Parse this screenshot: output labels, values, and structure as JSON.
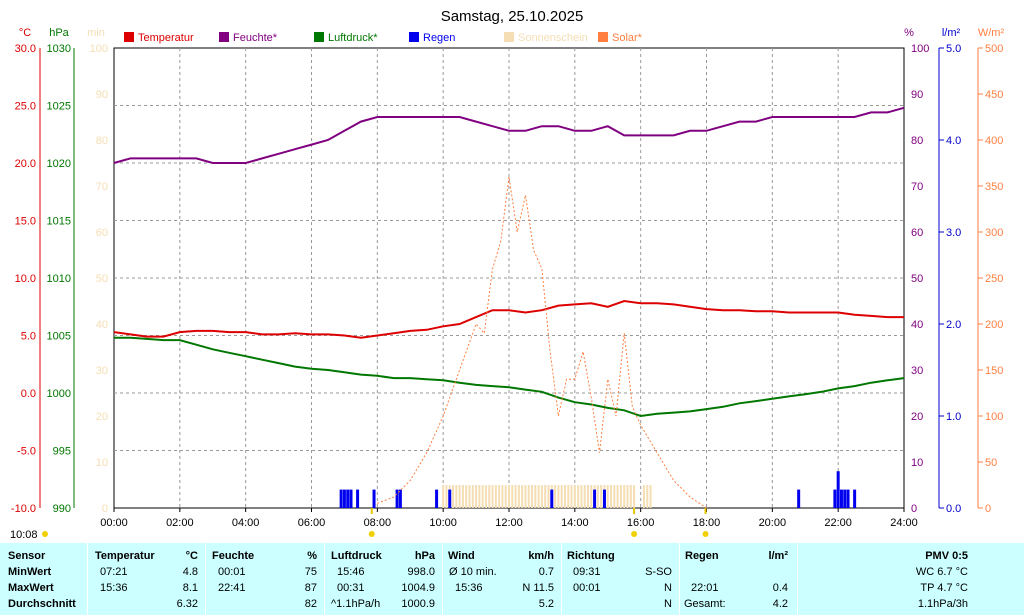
{
  "chart_data": {
    "type": "line",
    "title": "Samstag, 25.10.2025",
    "legend": [
      {
        "name": "Temperatur",
        "color": "#dd0000"
      },
      {
        "name": "Feuchte*",
        "color": "#800080"
      },
      {
        "name": "Luftdruck*",
        "color": "#007700"
      },
      {
        "name": "Regen",
        "color": "#0000ee"
      },
      {
        "name": "Sonnenschein",
        "color": "#f5deb3"
      },
      {
        "name": "Solar*",
        "color": "#ff7f40"
      }
    ],
    "axes": {
      "temp": {
        "unit": "°C",
        "range": [
          -10,
          30
        ],
        "ticks": [
          "-10.0",
          "-5.0",
          "0.0",
          "5.0",
          "10.0",
          "15.0",
          "20.0",
          "25.0",
          "30.0"
        ],
        "color": "#dd0000"
      },
      "pressure": {
        "unit": "hPa",
        "range": [
          990,
          1030
        ],
        "ticks": [
          "990",
          "995",
          "1000",
          "1005",
          "1010",
          "1015",
          "1020",
          "1025",
          "1030"
        ],
        "color": "#007700"
      },
      "sun": {
        "unit": "min",
        "range": [
          0,
          100
        ],
        "ticks": [
          "0",
          "10",
          "20",
          "30",
          "40",
          "50",
          "60",
          "70",
          "80",
          "90",
          "100"
        ],
        "color": "#f5deb3"
      },
      "humidity": {
        "unit": "%",
        "range": [
          0,
          100
        ],
        "ticks": [
          "0",
          "10",
          "20",
          "30",
          "40",
          "50",
          "60",
          "70",
          "80",
          "90",
          "100"
        ],
        "color": "#800080"
      },
      "rain": {
        "unit": "l/m²",
        "range": [
          0,
          5
        ],
        "ticks": [
          "0.0",
          "1.0",
          "2.0",
          "3.0",
          "4.0",
          "5.0"
        ],
        "color": "#0000cc"
      },
      "solar": {
        "unit": "W/m²",
        "range": [
          0,
          500
        ],
        "ticks": [
          "0",
          "50",
          "100",
          "150",
          "200",
          "250",
          "300",
          "350",
          "400",
          "450",
          "500"
        ],
        "color": "#ff7f40"
      },
      "x": {
        "ticks": [
          "00:00",
          "02:00",
          "04:00",
          "06:00",
          "08:00",
          "10:00",
          "12:00",
          "14:00",
          "16:00",
          "18:00",
          "20:00",
          "22:00",
          "24:00"
        ],
        "range_hours": [
          0,
          24
        ]
      }
    },
    "sunrise_label": "10:08",
    "sun_markers_hours": [
      7.83,
      15.8,
      17.97
    ],
    "series": [
      {
        "name": "Temperatur",
        "axis": "temp",
        "color": "#dd0000",
        "x": [
          0,
          0.5,
          1,
          1.5,
          2,
          2.5,
          3,
          3.5,
          4,
          4.5,
          5,
          5.5,
          6,
          6.5,
          7,
          7.5,
          8,
          8.5,
          9,
          9.5,
          10,
          10.5,
          11,
          11.5,
          12,
          12.5,
          13,
          13.5,
          14,
          14.5,
          15,
          15.5,
          16,
          16.5,
          17,
          17.5,
          18,
          18.5,
          19,
          19.5,
          20,
          20.5,
          21,
          21.5,
          22,
          22.5,
          23,
          23.5,
          24
        ],
        "y": [
          5.3,
          5.1,
          4.9,
          4.9,
          5.3,
          5.4,
          5.4,
          5.3,
          5.3,
          5.1,
          5.1,
          5.2,
          5.1,
          5.1,
          5.0,
          4.8,
          5.0,
          5.2,
          5.4,
          5.5,
          5.8,
          6.0,
          6.6,
          7.2,
          7.2,
          7.0,
          7.2,
          7.6,
          7.7,
          7.8,
          7.5,
          8.0,
          7.8,
          7.8,
          7.7,
          7.5,
          7.3,
          7.2,
          7.2,
          7.1,
          7.1,
          7.0,
          7.0,
          7.0,
          7.0,
          6.8,
          6.7,
          6.6,
          6.6
        ]
      },
      {
        "name": "Feuchte*",
        "axis": "humidity",
        "color": "#800080",
        "x": [
          0,
          0.5,
          1,
          1.5,
          2,
          2.5,
          3,
          3.5,
          4,
          4.5,
          5,
          5.5,
          6,
          6.5,
          7,
          7.5,
          8,
          8.5,
          9,
          9.5,
          10,
          10.5,
          11,
          11.5,
          12,
          12.5,
          13,
          13.5,
          14,
          14.5,
          15,
          15.5,
          16,
          16.5,
          17,
          17.5,
          18,
          18.5,
          19,
          19.5,
          20,
          20.5,
          21,
          21.5,
          22,
          22.5,
          23,
          23.5,
          24
        ],
        "y": [
          75,
          76,
          76,
          76,
          76,
          76,
          75,
          75,
          75,
          76,
          77,
          78,
          79,
          80,
          82,
          84,
          85,
          85,
          85,
          85,
          85,
          85,
          84,
          83,
          82,
          82,
          83,
          83,
          82,
          82,
          83,
          81,
          81,
          81,
          81,
          82,
          82,
          83,
          84,
          84,
          85,
          85,
          85,
          85,
          85,
          85,
          86,
          86,
          87
        ]
      },
      {
        "name": "Luftdruck*",
        "axis": "pressure",
        "color": "#007700",
        "x": [
          0,
          0.5,
          1,
          1.5,
          2,
          2.5,
          3,
          3.5,
          4,
          4.5,
          5,
          5.5,
          6,
          6.5,
          7,
          7.5,
          8,
          8.5,
          9,
          9.5,
          10,
          10.5,
          11,
          11.5,
          12,
          12.5,
          13,
          13.5,
          14,
          14.5,
          15,
          15.5,
          16,
          16.5,
          17,
          17.5,
          18,
          18.5,
          19,
          19.5,
          20,
          20.5,
          21,
          21.5,
          22,
          22.5,
          23,
          23.5,
          24
        ],
        "y": [
          1004.8,
          1004.8,
          1004.7,
          1004.6,
          1004.6,
          1004.2,
          1003.8,
          1003.5,
          1003.2,
          1002.9,
          1002.6,
          1002.3,
          1002.1,
          1002.0,
          1001.8,
          1001.6,
          1001.5,
          1001.3,
          1001.3,
          1001.2,
          1001.1,
          1000.9,
          1000.7,
          1000.6,
          1000.5,
          1000.3,
          1000.1,
          999.6,
          999.2,
          999.0,
          998.7,
          998.5,
          998.0,
          998.2,
          998.3,
          998.4,
          998.6,
          998.8,
          999.1,
          999.3,
          999.5,
          999.7,
          999.9,
          1000.1,
          1000.4,
          1000.6,
          1000.9,
          1001.1,
          1001.3
        ]
      },
      {
        "name": "Solar*",
        "axis": "solar",
        "color": "#ff7f40",
        "x": [
          8,
          8.5,
          9,
          9.5,
          10,
          10.5,
          11,
          11.25,
          11.5,
          11.75,
          12,
          12.25,
          12.5,
          12.75,
          13,
          13.25,
          13.5,
          13.75,
          14,
          14.25,
          14.5,
          14.75,
          15,
          15.25,
          15.5,
          15.75,
          16,
          16.5,
          17,
          17.5,
          18
        ],
        "y": [
          5,
          12,
          30,
          60,
          100,
          150,
          200,
          190,
          260,
          290,
          360,
          300,
          340,
          280,
          260,
          170,
          100,
          140,
          140,
          170,
          120,
          60,
          140,
          100,
          190,
          110,
          90,
          60,
          30,
          12,
          0
        ]
      }
    ],
    "rain_bars": [
      {
        "hour": 6.9,
        "mm": 0.2
      },
      {
        "hour": 7.0,
        "mm": 0.2
      },
      {
        "hour": 7.1,
        "mm": 0.2
      },
      {
        "hour": 7.2,
        "mm": 0.2
      },
      {
        "hour": 7.4,
        "mm": 0.2
      },
      {
        "hour": 7.9,
        "mm": 0.2
      },
      {
        "hour": 8.6,
        "mm": 0.2
      },
      {
        "hour": 8.7,
        "mm": 0.2
      },
      {
        "hour": 9.8,
        "mm": 0.2
      },
      {
        "hour": 10.2,
        "mm": 0.2
      },
      {
        "hour": 13.3,
        "mm": 0.2
      },
      {
        "hour": 14.6,
        "mm": 0.2
      },
      {
        "hour": 14.9,
        "mm": 0.2
      },
      {
        "hour": 20.8,
        "mm": 0.2
      },
      {
        "hour": 21.9,
        "mm": 0.2
      },
      {
        "hour": 22.0,
        "mm": 0.4
      },
      {
        "hour": 22.1,
        "mm": 0.2
      },
      {
        "hour": 22.2,
        "mm": 0.2
      },
      {
        "hour": 22.3,
        "mm": 0.2
      },
      {
        "hour": 22.5,
        "mm": 0.2
      }
    ],
    "sunshine_bars": {
      "start_hour": 10.0,
      "end_hour": 15.8,
      "step": 0.1,
      "minutes": 5,
      "extra": [
        16.1,
        16.2,
        16.3
      ]
    }
  },
  "table": {
    "sensor": {
      "header": "Sensor",
      "rows": [
        "MinWert",
        "MaxWert",
        "Durchschnitt"
      ]
    },
    "temperatur": {
      "header": "Temperatur",
      "unit": "°C",
      "rows": [
        {
          "time": "07:21",
          "value": "4.8"
        },
        {
          "time": "15:36",
          "value": "8.1"
        },
        {
          "time": "",
          "value": "6.32"
        }
      ]
    },
    "feuchte": {
      "header": "Feuchte",
      "unit": "%",
      "rows": [
        {
          "time": "00:01",
          "value": "75"
        },
        {
          "time": "22:41",
          "value": "87"
        },
        {
          "time": "",
          "value": "82"
        }
      ]
    },
    "luftdruck": {
      "header": "Luftdruck",
      "unit": "hPa",
      "rows": [
        {
          "time": "15:46",
          "value": "998.0"
        },
        {
          "time": "00:31",
          "value": "1004.9"
        },
        {
          "time": "^1.1hPa/h",
          "value": "1000.9"
        }
      ]
    },
    "wind": {
      "header": "Wind",
      "unit": "km/h",
      "rows": [
        {
          "time": "Ø 10 min.",
          "value": "0.7"
        },
        {
          "time": "15:36",
          "value": "N 11.5"
        },
        {
          "time": "",
          "value": "5.2"
        }
      ]
    },
    "richtung": {
      "header": "Richtung",
      "rows": [
        {
          "time": "09:31",
          "value": "S-SO"
        },
        {
          "time": "00:01",
          "value": "N"
        },
        {
          "time": "",
          "value": "N"
        }
      ]
    },
    "regen": {
      "header": "Regen",
      "unit": "l/m²",
      "rows": [
        {
          "time": "",
          "value": ""
        },
        {
          "time": "22:01",
          "value": "0.4"
        },
        {
          "time": "Gesamt:",
          "value": "4.2"
        }
      ]
    },
    "pmv": {
      "header": "PMV 0:5",
      "rows": [
        "WC 6.7 °C",
        "TP 4.7 °C",
        "1.1hPa/3h"
      ]
    }
  }
}
